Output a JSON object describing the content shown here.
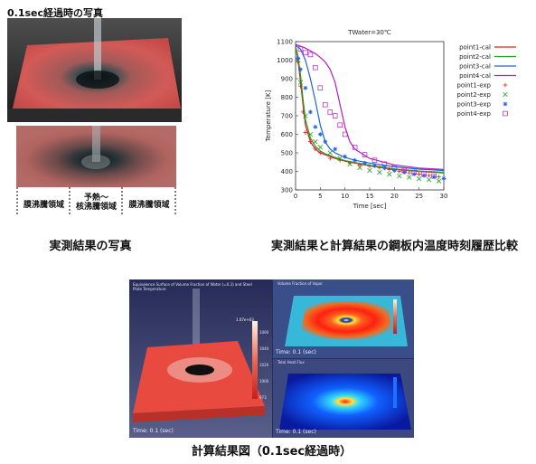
{
  "photo": {
    "title": "0.1sec経過時の写真",
    "regions": [
      "膜沸騰領域",
      "予熱～\n核沸騰領域",
      "膜沸騰領域"
    ],
    "caption": "実測結果の写真"
  },
  "chart_caption": "実測結果と計算結果の鋼板内温度時刻履歴比較",
  "simulation": {
    "caption": "計算結果図（0.1sec経過時）",
    "left_title": "Equivalence Surface of Volume Fraction of Water (=0.3) and Steel Plate Temperature",
    "right_top_title": "Volume Fraction of Vapor",
    "right_bottom_title": "Total Heat Flux",
    "time_left": "Time: 0.1 (sec)",
    "time_right_top": "Time: 0.1 (sec)",
    "time_right_bottom": "Time: 0.1 (sec)",
    "colorbar_max": "1.07e+03",
    "colorbar_ticks": [
      "1060",
      "1040",
      "1020",
      "1000"
    ],
    "colorbar_min": "973",
    "colors": {
      "plate": "#e8443c",
      "bg": "#2a2d5c"
    }
  },
  "chart_data": {
    "type": "line",
    "title": "TWater=30℃",
    "xlabel": "Time [sec]",
    "ylabel": "Temperature [K]",
    "xlim": [
      0,
      30
    ],
    "ylim": [
      300,
      1100
    ],
    "xticks": [
      0,
      5,
      10,
      15,
      20,
      25,
      30
    ],
    "yticks": [
      300,
      400,
      500,
      600,
      700,
      800,
      900,
      1000,
      1100
    ],
    "legend_position": "right",
    "grid": false,
    "series": [
      {
        "name": "point1-cal",
        "style": "line",
        "color": "#e02020",
        "x": [
          0,
          0.5,
          1,
          1.5,
          2,
          3,
          4,
          5,
          6,
          8,
          10,
          12,
          15,
          20,
          25,
          30
        ],
        "y": [
          1075,
          1000,
          880,
          760,
          650,
          560,
          520,
          500,
          490,
          470,
          455,
          445,
          430,
          410,
          400,
          392
        ]
      },
      {
        "name": "point2-cal",
        "style": "line",
        "color": "#20a020",
        "x": [
          0,
          0.5,
          1,
          1.5,
          2,
          3,
          4,
          5,
          6,
          8,
          10,
          12,
          15,
          20,
          25,
          30
        ],
        "y": [
          1075,
          1020,
          920,
          790,
          680,
          580,
          535,
          510,
          495,
          475,
          458,
          448,
          433,
          413,
          402,
          395
        ]
      },
      {
        "name": "point3-cal",
        "style": "line",
        "color": "#2060e0",
        "x": [
          0,
          1,
          2,
          3,
          4,
          5,
          6,
          7,
          8,
          10,
          12,
          15,
          20,
          25,
          30
        ],
        "y": [
          1080,
          1060,
          1000,
          900,
          780,
          650,
          560,
          520,
          500,
          475,
          460,
          445,
          425,
          412,
          405
        ]
      },
      {
        "name": "point4-cal",
        "style": "line",
        "color": "#b020c0",
        "x": [
          0,
          1,
          2,
          3,
          4,
          5,
          6,
          7,
          8,
          9,
          10,
          11,
          12,
          15,
          20,
          25,
          30
        ],
        "y": [
          1085,
          1075,
          1065,
          1050,
          1035,
          1015,
          990,
          950,
          880,
          760,
          640,
          560,
          520,
          470,
          435,
          418,
          410
        ]
      },
      {
        "name": "point1-exp",
        "style": "plus",
        "color": "#e02020",
        "x": [
          0.5,
          1,
          1.5,
          2,
          3,
          4,
          5,
          7,
          9,
          11,
          13,
          15,
          17,
          19,
          21,
          23,
          25,
          27,
          29
        ],
        "y": [
          990,
          860,
          720,
          610,
          560,
          520,
          500,
          470,
          460,
          445,
          435,
          428,
          420,
          410,
          400,
          392,
          385,
          378,
          370
        ]
      },
      {
        "name": "point2-exp",
        "style": "x",
        "color": "#20a020",
        "x": [
          0.5,
          1,
          2,
          3,
          4,
          5,
          7,
          9,
          11,
          13,
          15,
          17,
          19,
          21,
          23,
          25,
          27,
          29
        ],
        "y": [
          1000,
          880,
          700,
          600,
          560,
          530,
          500,
          470,
          440,
          420,
          405,
          395,
          385,
          375,
          368,
          360,
          355,
          348
        ]
      },
      {
        "name": "point3-exp",
        "style": "star",
        "color": "#2060e0",
        "x": [
          0.5,
          1,
          2,
          3,
          4,
          5,
          6,
          8,
          10,
          12,
          14,
          16,
          18,
          20,
          22,
          24,
          26,
          28,
          30
        ],
        "y": [
          1010,
          950,
          850,
          720,
          640,
          600,
          560,
          520,
          480,
          460,
          445,
          430,
          418,
          405,
          395,
          385,
          378,
          370,
          362
        ]
      },
      {
        "name": "point4-exp",
        "style": "square",
        "color": "#b020c0",
        "x": [
          1,
          2,
          3,
          4,
          5,
          6,
          7,
          8,
          9,
          10,
          12,
          14,
          16,
          18,
          20,
          22,
          24,
          26,
          28
        ],
        "y": [
          1060,
          1040,
          1030,
          960,
          850,
          760,
          720,
          700,
          650,
          600,
          530,
          490,
          460,
          440,
          420,
          405,
          395,
          385,
          375
        ]
      }
    ]
  }
}
